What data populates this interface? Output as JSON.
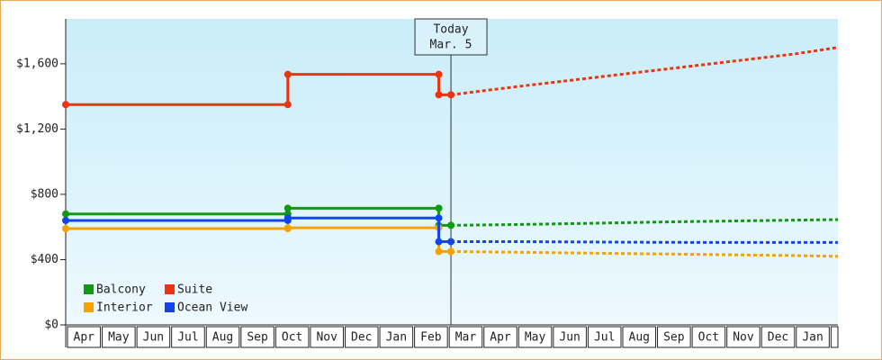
{
  "chart_data": {
    "type": "line",
    "categories": [
      "Apr",
      "May",
      "Jun",
      "Jul",
      "Aug",
      "Sep",
      "Oct",
      "Nov",
      "Dec",
      "Jan",
      "Feb",
      "Mar",
      "Apr",
      "May",
      "Jun",
      "Jul",
      "Aug",
      "Sep",
      "Oct",
      "Nov",
      "Dec",
      "Jan"
    ],
    "xlim": [
      0,
      22.25
    ],
    "ylim": [
      0,
      1875
    ],
    "yticks": [
      {
        "value": 0,
        "label": "$0"
      },
      {
        "value": 400,
        "label": "$400"
      },
      {
        "value": 800,
        "label": "$800"
      },
      {
        "value": 1200,
        "label": "$1,200"
      },
      {
        "value": 1600,
        "label": "$1,600"
      }
    ],
    "annotation": {
      "x": 11.1,
      "lines": [
        "Today",
        "Mar. 5"
      ]
    },
    "legend": "lower left",
    "series": [
      {
        "name": "Balcony",
        "color": "#119911",
        "x": [
          0,
          6.4,
          6.4,
          10.75,
          10.75,
          11.1
        ],
        "values": [
          680,
          680,
          715,
          715,
          610,
          610
        ],
        "forecast": {
          "x": [
            11.1,
            13,
            15,
            17,
            19,
            21,
            22.25
          ],
          "values": [
            610,
            615,
            622,
            630,
            636,
            642,
            645
          ]
        }
      },
      {
        "name": "Suite",
        "color": "#ee3311",
        "x": [
          0,
          6.4,
          6.4,
          10.75,
          10.75,
          11.1
        ],
        "values": [
          1350,
          1350,
          1535,
          1535,
          1410,
          1410
        ],
        "forecast": {
          "x": [
            11.1,
            13,
            15,
            17,
            19,
            21,
            22.25
          ],
          "values": [
            1410,
            1460,
            1510,
            1560,
            1610,
            1660,
            1700
          ]
        }
      },
      {
        "name": "Interior",
        "color": "#f5a300",
        "x": [
          0,
          6.4,
          6.4,
          10.75,
          10.75,
          11.1
        ],
        "values": [
          590,
          590,
          595,
          595,
          450,
          450
        ],
        "forecast": {
          "x": [
            11.1,
            13,
            15,
            17,
            19,
            21,
            22.25
          ],
          "values": [
            450,
            445,
            440,
            435,
            430,
            425,
            420
          ]
        }
      },
      {
        "name": "Ocean View",
        "color": "#1144ee",
        "x": [
          0,
          6.4,
          6.4,
          10.75,
          10.75,
          11.1
        ],
        "values": [
          640,
          640,
          655,
          655,
          510,
          510
        ],
        "forecast": {
          "x": [
            11.1,
            13,
            15,
            17,
            19,
            21,
            22.25
          ],
          "values": [
            510,
            510,
            508,
            506,
            505,
            505,
            505
          ]
        }
      }
    ]
  }
}
